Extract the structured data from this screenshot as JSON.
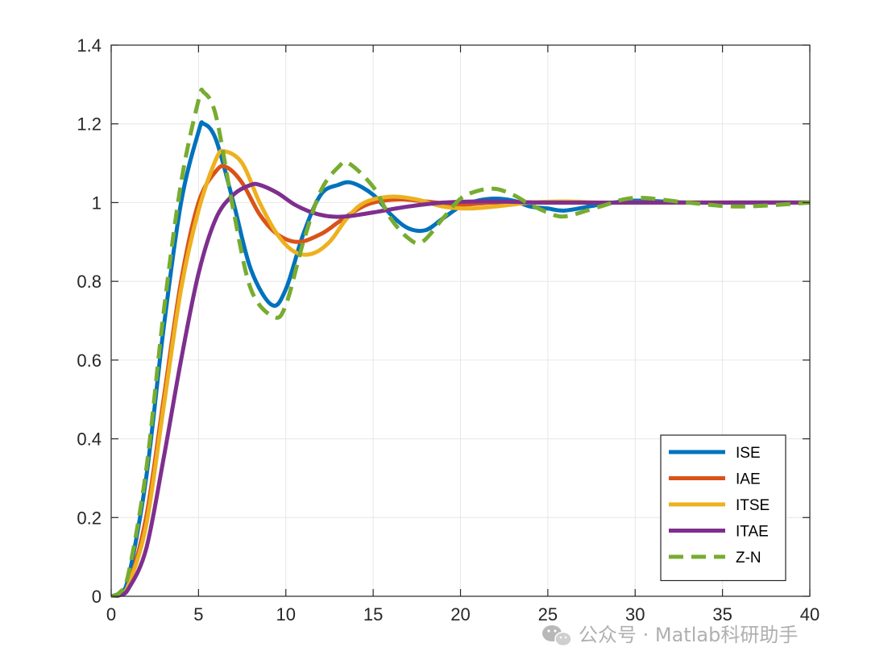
{
  "chart_data": {
    "type": "line",
    "title": "",
    "xlabel": "",
    "ylabel": "",
    "xlim": [
      0,
      40
    ],
    "ylim": [
      0,
      1.4
    ],
    "xticks": [
      0,
      5,
      10,
      15,
      20,
      25,
      30,
      35,
      40
    ],
    "yticks": [
      0,
      0.2,
      0.4,
      0.6,
      0.8,
      1,
      1.2,
      1.4
    ],
    "xtick_labels": [
      "0",
      "5",
      "10",
      "15",
      "20",
      "25",
      "30",
      "35",
      "40"
    ],
    "ytick_labels": [
      "0",
      "0.2",
      "0.4",
      "0.6",
      "0.8",
      "1",
      "1.2",
      "1.4"
    ],
    "grid": true,
    "legend_position": "bottom-right",
    "series": [
      {
        "name": "ISE",
        "color": "#0072bd",
        "style": "solid",
        "x": [
          0,
          0.5,
          1,
          2,
          3,
          4,
          5,
          5.3,
          6,
          7,
          8,
          9.2,
          10,
          11,
          12,
          13,
          13.8,
          15,
          16,
          17,
          18,
          19,
          20,
          21,
          22,
          23,
          24,
          25,
          26,
          28,
          30,
          33,
          36,
          40
        ],
        "y": [
          0,
          0.01,
          0.05,
          0.3,
          0.68,
          1.0,
          1.18,
          1.2,
          1.16,
          1.0,
          0.83,
          0.74,
          0.78,
          0.92,
          1.02,
          1.045,
          1.05,
          1.02,
          0.97,
          0.935,
          0.93,
          0.96,
          0.99,
          1.005,
          1.01,
          1.005,
          0.99,
          0.985,
          0.98,
          0.995,
          1.005,
          1.0,
          1.0,
          1.0
        ]
      },
      {
        "name": "IAE",
        "color": "#d95319",
        "style": "solid",
        "x": [
          0,
          0.5,
          1,
          2,
          3,
          4,
          5,
          6,
          6.6,
          7.5,
          8.5,
          9.5,
          10.7,
          12,
          13,
          14,
          15,
          16.5,
          18,
          20,
          22,
          25,
          30,
          35,
          40
        ],
        "y": [
          0,
          0.005,
          0.03,
          0.2,
          0.5,
          0.8,
          1.0,
          1.08,
          1.09,
          1.05,
          0.97,
          0.92,
          0.9,
          0.92,
          0.95,
          0.98,
          1.0,
          1.008,
          1.003,
          0.995,
          1.0,
          1.0,
          1.0,
          1.0,
          1.0
        ]
      },
      {
        "name": "ITSE",
        "color": "#edb120",
        "style": "solid",
        "x": [
          0,
          0.5,
          1,
          2,
          3,
          4,
          5,
          6,
          6.5,
          7.5,
          8.5,
          9.5,
          10.5,
          11.5,
          12.5,
          13.5,
          14.5,
          16,
          17.5,
          19,
          20.5,
          22,
          24,
          26,
          28,
          30,
          35,
          40
        ],
        "y": [
          0,
          0.005,
          0.03,
          0.18,
          0.48,
          0.78,
          0.98,
          1.11,
          1.13,
          1.1,
          1.0,
          0.92,
          0.875,
          0.87,
          0.9,
          0.96,
          1.0,
          1.015,
          1.008,
          0.99,
          0.985,
          0.99,
          1.0,
          1.003,
          1.0,
          1.0,
          1.0,
          1.0
        ]
      },
      {
        "name": "ITAE",
        "color": "#7e2f8e",
        "style": "solid",
        "x": [
          0,
          0.5,
          1,
          2,
          3,
          4,
          5,
          6,
          7,
          8,
          8.5,
          9.5,
          10.5,
          11.5,
          12.5,
          13.5,
          15,
          17,
          19,
          21,
          23,
          25,
          30,
          35,
          40
        ],
        "y": [
          0,
          0.003,
          0.02,
          0.12,
          0.35,
          0.6,
          0.82,
          0.96,
          1.02,
          1.045,
          1.045,
          1.025,
          0.995,
          0.975,
          0.965,
          0.965,
          0.975,
          0.99,
          1.0,
          1.003,
          1.002,
          1.0,
          1.0,
          1.0,
          1.0
        ]
      },
      {
        "name": "Z-N",
        "color": "#77ac30",
        "style": "dashed",
        "x": [
          0,
          0.5,
          1,
          2,
          3,
          4,
          5,
          5.3,
          6,
          7,
          8,
          9.3,
          10,
          11,
          12,
          13,
          13.6,
          15,
          16,
          17,
          17.8,
          19,
          20,
          21,
          22,
          23,
          24,
          25,
          26,
          28,
          30,
          33,
          36,
          40
        ],
        "y": [
          0,
          0.01,
          0.06,
          0.32,
          0.72,
          1.05,
          1.26,
          1.28,
          1.22,
          0.98,
          0.78,
          0.71,
          0.74,
          0.9,
          1.03,
          1.09,
          1.1,
          1.04,
          0.96,
          0.91,
          0.9,
          0.96,
          1.01,
          1.03,
          1.035,
          1.02,
          0.995,
          0.975,
          0.965,
          0.99,
          1.012,
          1.0,
          0.99,
          1.0
        ]
      }
    ]
  },
  "watermark": {
    "text": "公众号 · Matlab科研助手",
    "icon": "wechat-icon"
  }
}
